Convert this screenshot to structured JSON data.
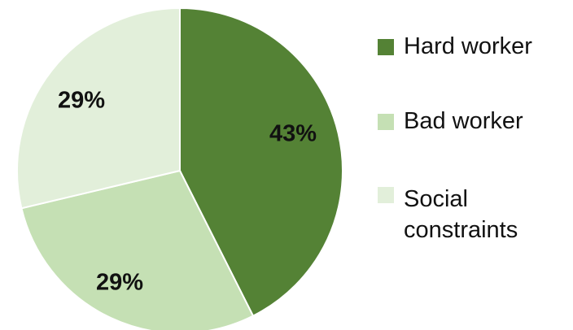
{
  "chart_data": {
    "type": "pie",
    "categories": [
      "Hard worker",
      "Bad worker",
      "Social constraints"
    ],
    "values": [
      43,
      29,
      29
    ],
    "value_labels": [
      "43%",
      "29%",
      "29%"
    ],
    "colors": [
      "#548235",
      "#c5e0b4",
      "#e2efda"
    ],
    "title": "",
    "legend": "right",
    "grid": false
  }
}
